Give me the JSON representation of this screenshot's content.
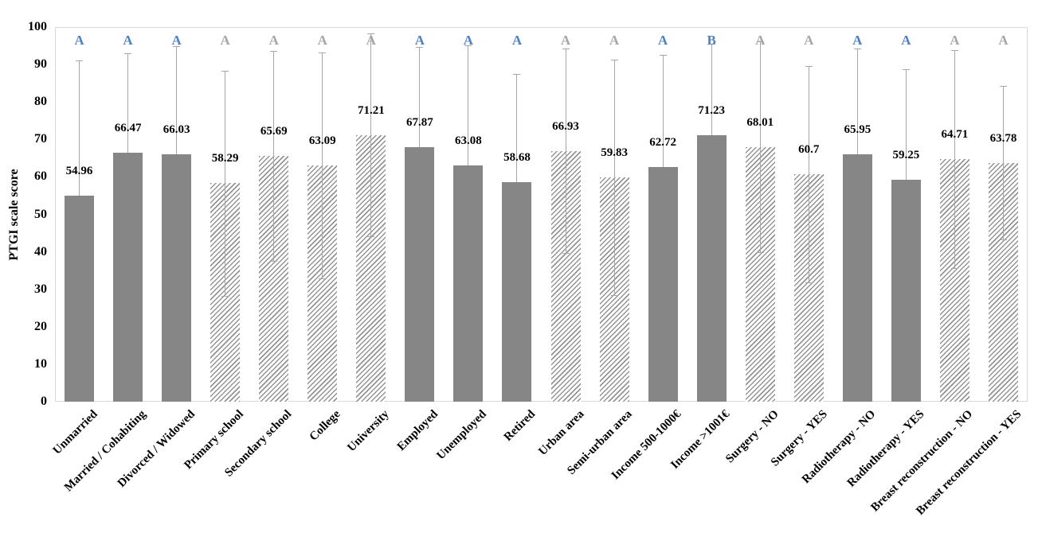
{
  "chart_data": {
    "type": "bar",
    "title": "",
    "xlabel": "",
    "ylabel": "PTGI scale score",
    "ylim": [
      0,
      100
    ],
    "y_ticks": [
      0,
      10,
      20,
      30,
      40,
      50,
      60,
      70,
      80,
      90,
      100
    ],
    "grid": false,
    "legend": "none",
    "error_bars": "symmetric, caps at both ends, lower cap visible only on hatched bars",
    "bars": [
      {
        "category": "Unmarried",
        "value": 54.96,
        "label": "54.96",
        "error_upper": 91.0,
        "fill": "solid",
        "letter": "A",
        "letter_color": "blue"
      },
      {
        "category": "Married / Cohabiting",
        "value": 66.47,
        "label": "66.47",
        "error_upper": 93.0,
        "fill": "solid",
        "letter": "A",
        "letter_color": "blue"
      },
      {
        "category": "Divorced / Widowed",
        "value": 66.03,
        "label": "66.03",
        "error_upper": 94.8,
        "fill": "solid",
        "letter": "A",
        "letter_color": "blue"
      },
      {
        "category": "Primary school",
        "value": 58.29,
        "label": "58.29",
        "error_upper": 88.3,
        "fill": "hatch",
        "letter": "A",
        "letter_color": "gray"
      },
      {
        "category": "Secondary school",
        "value": 65.69,
        "label": "65.69",
        "error_upper": 93.7,
        "fill": "hatch",
        "letter": "A",
        "letter_color": "gray"
      },
      {
        "category": "College",
        "value": 63.09,
        "label": "63.09",
        "error_upper": 93.2,
        "fill": "hatch",
        "letter": "A",
        "letter_color": "gray"
      },
      {
        "category": "University",
        "value": 71.21,
        "label": "71.21",
        "error_upper": 98.2,
        "fill": "hatch",
        "letter": "A",
        "letter_color": "gray"
      },
      {
        "category": "Employed",
        "value": 67.87,
        "label": "67.87",
        "error_upper": 94.7,
        "fill": "solid",
        "letter": "A",
        "letter_color": "blue"
      },
      {
        "category": "Unemployed",
        "value": 63.08,
        "label": "63.08",
        "error_upper": 95.2,
        "fill": "solid",
        "letter": "A",
        "letter_color": "blue"
      },
      {
        "category": "Retired",
        "value": 58.68,
        "label": "58.68",
        "error_upper": 87.4,
        "fill": "solid",
        "letter": "A",
        "letter_color": "blue"
      },
      {
        "category": "Urban area",
        "value": 66.93,
        "label": "66.93",
        "error_upper": 94.2,
        "fill": "hatch",
        "letter": "A",
        "letter_color": "gray"
      },
      {
        "category": "Semi-urban area",
        "value": 59.83,
        "label": "59.83",
        "error_upper": 91.2,
        "fill": "hatch",
        "letter": "A",
        "letter_color": "gray"
      },
      {
        "category": "Income 500-1000€",
        "value": 62.72,
        "label": "62.72",
        "error_upper": 92.5,
        "fill": "solid",
        "letter": "A",
        "letter_color": "blue"
      },
      {
        "category": "Income >1001€",
        "value": 71.23,
        "label": "71.23",
        "error_upper": 95.6,
        "fill": "solid",
        "letter": "B",
        "letter_color": "blue"
      },
      {
        "category": "Surgery - NO",
        "value": 68.01,
        "label": "68.01",
        "error_upper": 96.2,
        "fill": "hatch",
        "letter": "A",
        "letter_color": "gray"
      },
      {
        "category": "Surgery - YES",
        "value": 60.7,
        "label": "60.7",
        "error_upper": 89.5,
        "fill": "hatch",
        "letter": "A",
        "letter_color": "gray"
      },
      {
        "category": "Radiotherapy - NO",
        "value": 65.95,
        "label": "65.95",
        "error_upper": 94.3,
        "fill": "solid",
        "letter": "A",
        "letter_color": "blue"
      },
      {
        "category": "Radiotherapy - YES",
        "value": 59.25,
        "label": "59.25",
        "error_upper": 88.8,
        "fill": "solid",
        "letter": "A",
        "letter_color": "blue"
      },
      {
        "category": "Breast reconstruction - NO",
        "value": 64.71,
        "label": "64.71",
        "error_upper": 93.8,
        "fill": "hatch",
        "letter": "A",
        "letter_color": "gray"
      },
      {
        "category": "Breast reconstruction - YES",
        "value": 63.78,
        "label": "63.78",
        "error_upper": 84.3,
        "fill": "hatch",
        "letter": "A",
        "letter_color": "gray"
      }
    ],
    "colors": {
      "solid_bar": "#868686",
      "hatch_stripe": "#949494",
      "hatch_bg": "#ffffff",
      "error_bar": "#a6a6a6",
      "letter_blue": "#4f81bd",
      "letter_gray": "#a6a6a6",
      "plot_border": "#d9d9d9",
      "text": "#000000"
    }
  }
}
